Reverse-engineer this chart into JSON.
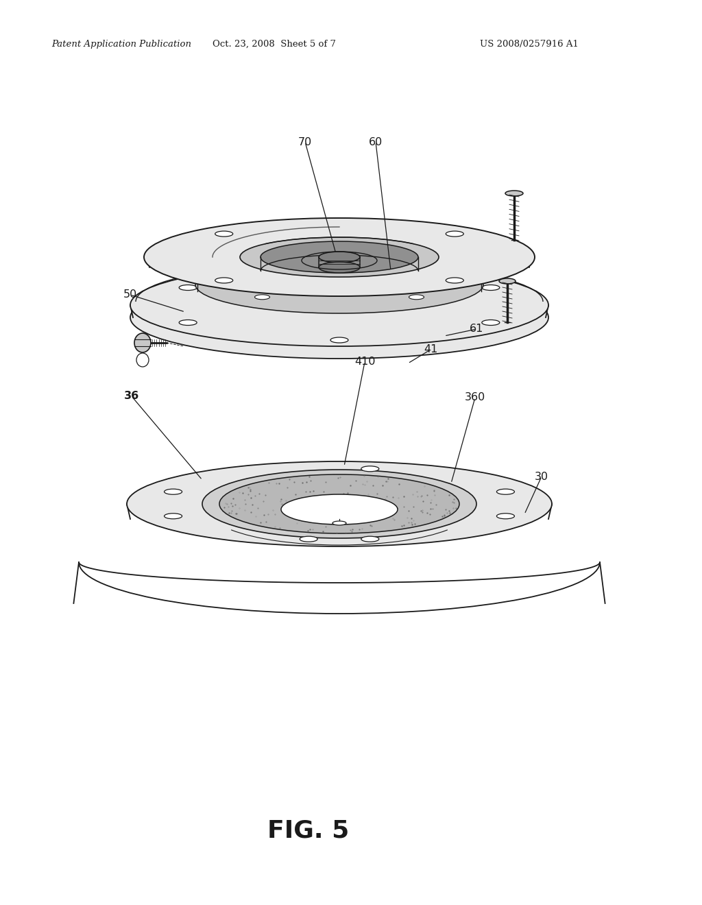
{
  "bg_color": "#ffffff",
  "line_color": "#1a1a1a",
  "gray_light": "#e8e8e8",
  "gray_mid": "#c8c8c8",
  "gray_dark": "#909090",
  "gray_stipple": "#707070",
  "header_left": "Patent Application Publication",
  "header_mid": "Oct. 23, 2008  Sheet 5 of 7",
  "header_right": "US 2008/0257916 A1",
  "fig_label": "FIG. 5"
}
